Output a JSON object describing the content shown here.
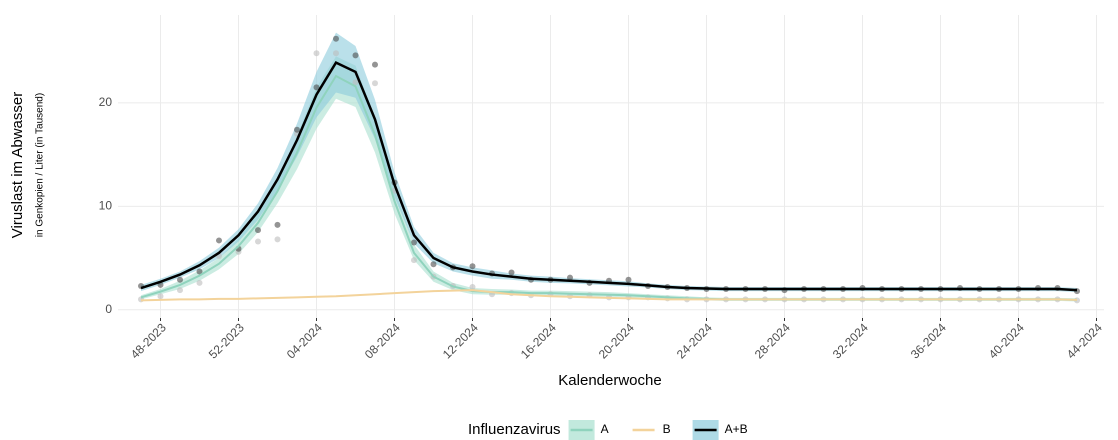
{
  "chart_data": {
    "type": "line",
    "x_label": "Kalenderwoche",
    "y_label": "Viruslast im Abwasser",
    "y_sublabel": "in Genkopien / Liter (in Tausend)",
    "legend_title": "Influenzavirus",
    "legend_position": "bottom",
    "grid": true,
    "ylim": [
      -0.8,
      28.5
    ],
    "yticks": [
      0,
      10,
      20
    ],
    "categories": [
      null,
      "48-2023",
      null,
      null,
      null,
      "52-2023",
      null,
      null,
      null,
      "04-2024",
      null,
      null,
      null,
      "08-2024",
      null,
      null,
      null,
      "12-2024",
      null,
      null,
      null,
      "16-2024",
      null,
      null,
      null,
      "20-2024",
      null,
      null,
      null,
      "24-2024",
      null,
      null,
      null,
      "28-2024",
      null,
      null,
      null,
      "32-2024",
      null,
      null,
      null,
      "36-2024",
      null,
      null,
      null,
      "40-2024",
      null,
      null,
      null,
      "44-2024"
    ],
    "series": [
      {
        "name": "A",
        "color": "#8fd3bd",
        "band_color": "#a8e0cf",
        "point_color": "#bdbdbd",
        "values": [
          1.2,
          1.75,
          2.4,
          3.3,
          4.45,
          6.15,
          8.4,
          11.45,
          15.2,
          19.55,
          22.6,
          21.6,
          16.9,
          10.5,
          5.5,
          3.2,
          2.25,
          1.8,
          1.7,
          1.7,
          1.6,
          1.6,
          1.55,
          1.5,
          1.45,
          1.4,
          1.3,
          1.2,
          1.1,
          1.05,
          1.0,
          1.0,
          1.0,
          1.0,
          1.0,
          1.0,
          1.0,
          1.0,
          1.0,
          1.0,
          1.0,
          1.0,
          1.0,
          1.0,
          1.0,
          1.0,
          1.0,
          1.0,
          0.95,
          null
        ],
        "upper": [
          1.4,
          2.0,
          2.8,
          3.8,
          5.0,
          6.9,
          9.3,
          12.6,
          16.8,
          21.5,
          24.5,
          23.6,
          18.6,
          11.7,
          6.3,
          3.7,
          2.6,
          2.1,
          2.0,
          1.95,
          1.85,
          1.85,
          1.8,
          1.75,
          1.7,
          1.6,
          1.5,
          1.4,
          1.3,
          1.2,
          1.15,
          1.15,
          1.15,
          1.15,
          1.15,
          1.15,
          1.15,
          1.15,
          1.15,
          1.15,
          1.15,
          1.15,
          1.15,
          1.15,
          1.15,
          1.15,
          1.15,
          1.15,
          1.1,
          null
        ],
        "lower": [
          1.0,
          1.5,
          2.0,
          2.8,
          3.9,
          5.4,
          7.5,
          10.3,
          13.6,
          17.5,
          20.4,
          19.6,
          15.2,
          9.3,
          4.8,
          2.7,
          1.9,
          1.5,
          1.45,
          1.45,
          1.4,
          1.4,
          1.3,
          1.3,
          1.25,
          1.2,
          1.1,
          1.0,
          0.95,
          0.9,
          0.85,
          0.85,
          0.85,
          0.85,
          0.85,
          0.85,
          0.85,
          0.85,
          0.85,
          0.85,
          0.85,
          0.85,
          0.85,
          0.85,
          0.85,
          0.85,
          0.85,
          0.85,
          0.8,
          null
        ],
        "points": [
          1.0,
          1.3,
          1.9,
          2.6,
          5.2,
          5.6,
          6.6,
          6.8,
          17.0,
          24.8,
          24.8,
          22.0,
          21.9,
          11.5,
          4.8,
          3.2,
          2.3,
          2.2,
          1.5,
          1.6,
          1.4,
          1.5,
          1.3,
          1.4,
          1.2,
          1.2,
          1.2,
          1.1,
          1.0,
          1.0,
          1.0,
          1.0,
          1.0,
          1.0,
          1.0,
          1.0,
          1.0,
          1.0,
          1.0,
          1.0,
          1.0,
          1.0,
          1.0,
          1.0,
          1.0,
          1.0,
          1.0,
          1.0,
          0.9,
          null
        ]
      },
      {
        "name": "B",
        "color": "#f3d39b",
        "values": [
          0.9,
          0.95,
          1.0,
          1.0,
          1.05,
          1.05,
          1.1,
          1.15,
          1.2,
          1.25,
          1.3,
          1.4,
          1.5,
          1.6,
          1.7,
          1.8,
          1.85,
          1.9,
          1.7,
          1.5,
          1.4,
          1.3,
          1.25,
          1.2,
          1.15,
          1.1,
          1.05,
          1.0,
          1.0,
          1.0,
          1.0,
          1.0,
          1.0,
          1.0,
          1.0,
          1.0,
          1.0,
          1.0,
          1.0,
          1.0,
          1.0,
          1.0,
          1.0,
          1.0,
          1.0,
          1.0,
          1.0,
          1.0,
          0.95,
          null
        ]
      },
      {
        "name": "A+B",
        "color": "#000000",
        "band_color": "#8ccbdc",
        "point_color": "#4d4d4d",
        "values": [
          2.1,
          2.7,
          3.4,
          4.3,
          5.5,
          7.2,
          9.5,
          12.6,
          16.4,
          20.8,
          23.9,
          23.0,
          18.4,
          12.1,
          7.2,
          5.0,
          4.1,
          3.7,
          3.4,
          3.2,
          3.0,
          2.9,
          2.8,
          2.7,
          2.6,
          2.5,
          2.35,
          2.2,
          2.1,
          2.05,
          2.0,
          2.0,
          2.0,
          2.0,
          2.0,
          2.0,
          2.0,
          2.0,
          2.0,
          2.0,
          2.0,
          2.0,
          2.0,
          2.0,
          2.0,
          2.0,
          2.0,
          2.0,
          1.9,
          null
        ],
        "upper": [
          2.4,
          3.0,
          3.7,
          4.7,
          6.0,
          7.8,
          10.3,
          13.7,
          18.0,
          23.0,
          26.8,
          25.5,
          20.3,
          13.3,
          8.0,
          5.5,
          4.5,
          4.1,
          3.8,
          3.5,
          3.3,
          3.2,
          3.05,
          2.95,
          2.85,
          2.75,
          2.55,
          2.4,
          2.3,
          2.25,
          2.2,
          2.2,
          2.2,
          2.2,
          2.2,
          2.2,
          2.2,
          2.2,
          2.2,
          2.2,
          2.2,
          2.2,
          2.2,
          2.2,
          2.2,
          2.2,
          2.2,
          2.2,
          2.1,
          null
        ],
        "lower": [
          1.8,
          2.4,
          3.1,
          3.9,
          5.0,
          6.6,
          8.7,
          11.5,
          14.8,
          18.6,
          21.0,
          20.5,
          16.5,
          10.9,
          6.4,
          4.5,
          3.7,
          3.3,
          3.0,
          2.9,
          2.7,
          2.6,
          2.55,
          2.45,
          2.35,
          2.25,
          2.15,
          2.0,
          1.9,
          1.85,
          1.8,
          1.8,
          1.8,
          1.8,
          1.8,
          1.8,
          1.8,
          1.8,
          1.8,
          1.8,
          1.8,
          1.8,
          1.8,
          1.8,
          1.8,
          1.8,
          1.8,
          1.8,
          1.7,
          null
        ],
        "points": [
          2.3,
          2.4,
          2.9,
          3.7,
          6.7,
          5.9,
          7.7,
          8.2,
          17.4,
          21.5,
          26.2,
          24.6,
          23.7,
          12.3,
          6.5,
          4.4,
          4.1,
          4.2,
          3.5,
          3.6,
          2.9,
          2.9,
          3.1,
          2.6,
          2.8,
          2.9,
          2.3,
          2.2,
          2.1,
          2.0,
          2.0,
          2.0,
          2.0,
          1.9,
          2.0,
          2.0,
          2.0,
          2.1,
          2.0,
          2.0,
          2.0,
          2.0,
          2.1,
          2.0,
          2.0,
          2.0,
          2.1,
          2.1,
          1.8,
          null
        ]
      }
    ]
  }
}
